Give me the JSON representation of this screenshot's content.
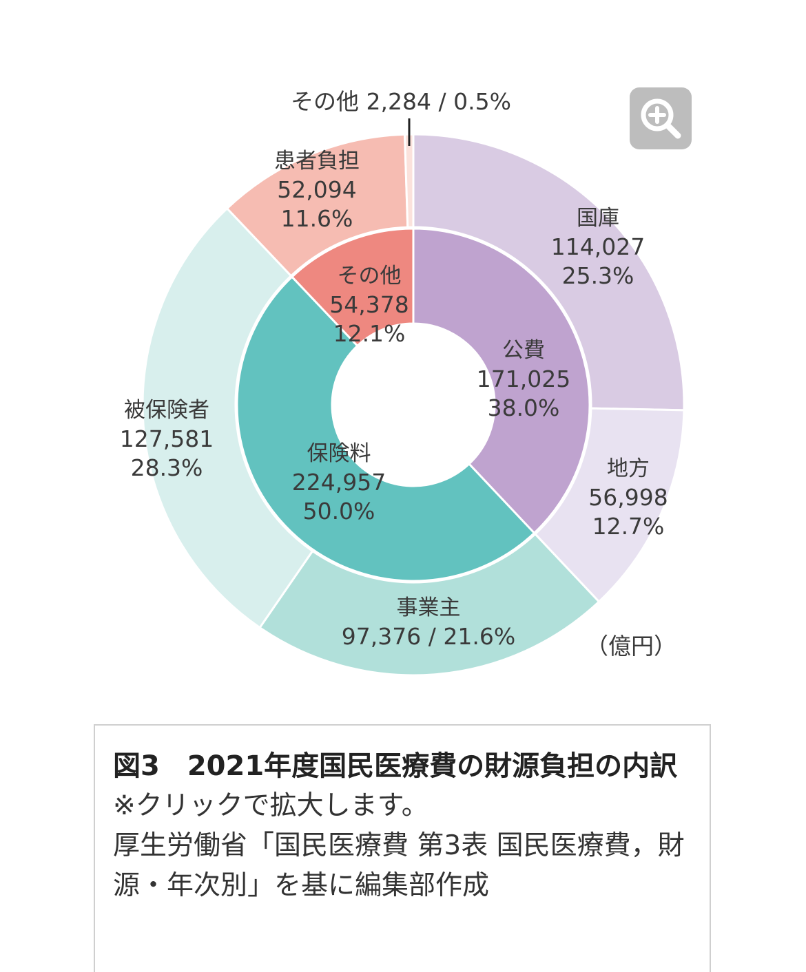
{
  "chart_data": {
    "type": "pie",
    "unit": "（億円）",
    "inner_ring": [
      {
        "name": "公費",
        "value": 171025,
        "percent": "38.0%",
        "value_label": "171,025",
        "color": "#bfa3cf"
      },
      {
        "name": "保険料",
        "value": 224957,
        "percent": "50.0%",
        "value_label": "224,957",
        "color": "#62c2bf"
      },
      {
        "name": "その他",
        "value": 54378,
        "percent": "12.1%",
        "value_label": "54,378",
        "color": "#ee8880"
      }
    ],
    "outer_ring": [
      {
        "name": "国庫",
        "value": 114027,
        "percent": "25.3%",
        "value_label": "114,027",
        "color": "#d9cbe3"
      },
      {
        "name": "地方",
        "value": 56998,
        "percent": "12.7%",
        "value_label": "56,998",
        "color": "#e8e2f1"
      },
      {
        "name": "事業主",
        "value": 97376,
        "percent": "21.6%",
        "value_label": "97,376",
        "combined": "97,376 / 21.6%",
        "color": "#b1e0da"
      },
      {
        "name": "被保険者",
        "value": 127581,
        "percent": "28.3%",
        "value_label": "127,581",
        "color": "#d8efed"
      },
      {
        "name": "患者負担",
        "value": 52094,
        "percent": "11.6%",
        "value_label": "52,094",
        "color": "#f6bcb2"
      },
      {
        "name": "その他",
        "value": 2284,
        "percent": "0.5%",
        "value_label": "2,284",
        "combined": "その他 2,284 / 0.5%",
        "color": "#fbe2dc"
      }
    ]
  },
  "zoom_icon": "zoom-in-icon",
  "caption": {
    "title": "図3　2021年度国民医療費の財源負担の内訳",
    "line1": "※クリックで拡大します。",
    "line2": "厚生労働省「国民医療費 第3表 国民医療費，財源・年次別」を基に編集部作成"
  }
}
